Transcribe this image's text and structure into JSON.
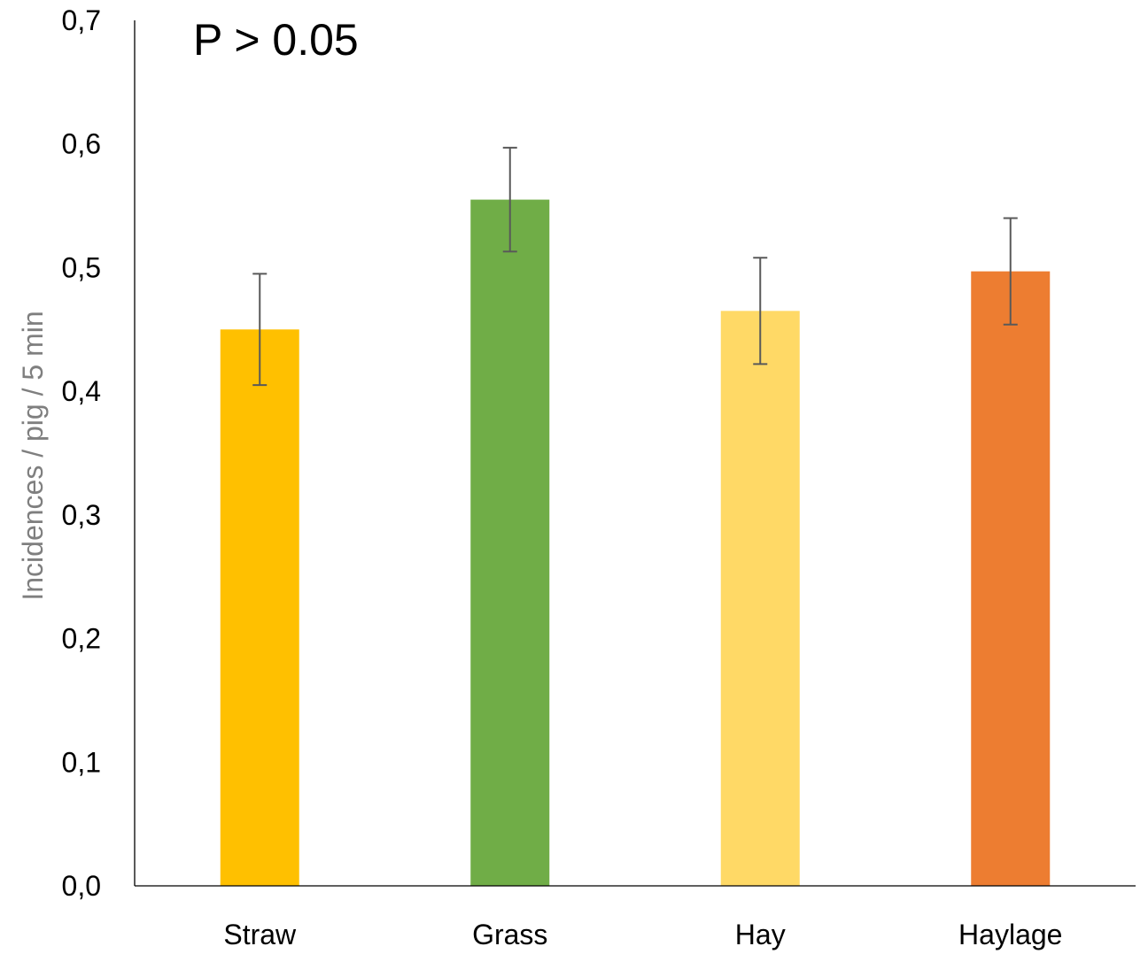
{
  "chart_data": {
    "type": "bar",
    "categories": [
      "Straw",
      "Grass",
      "Hay",
      "Haylage"
    ],
    "values": [
      0.45,
      0.555,
      0.465,
      0.497
    ],
    "error": [
      0.045,
      0.042,
      0.043,
      0.043
    ],
    "colors": [
      "#ffc000",
      "#70ad47",
      "#ffd966",
      "#ed7d31"
    ],
    "error_color": "#595959",
    "axis_color": "#000000",
    "title": "",
    "annotation": "P > 0.05",
    "xlabel": "",
    "ylabel": "Incidences / pig / 5 min",
    "ylim": [
      0,
      0.7
    ],
    "yticks": [
      0.0,
      0.1,
      0.2,
      0.3,
      0.4,
      0.5,
      0.6,
      0.7
    ],
    "ytick_labels": [
      "0,0",
      "0,1",
      "0,2",
      "0,3",
      "0,4",
      "0,5",
      "0,6",
      "0,7"
    ],
    "grid": false,
    "legend": "none"
  }
}
